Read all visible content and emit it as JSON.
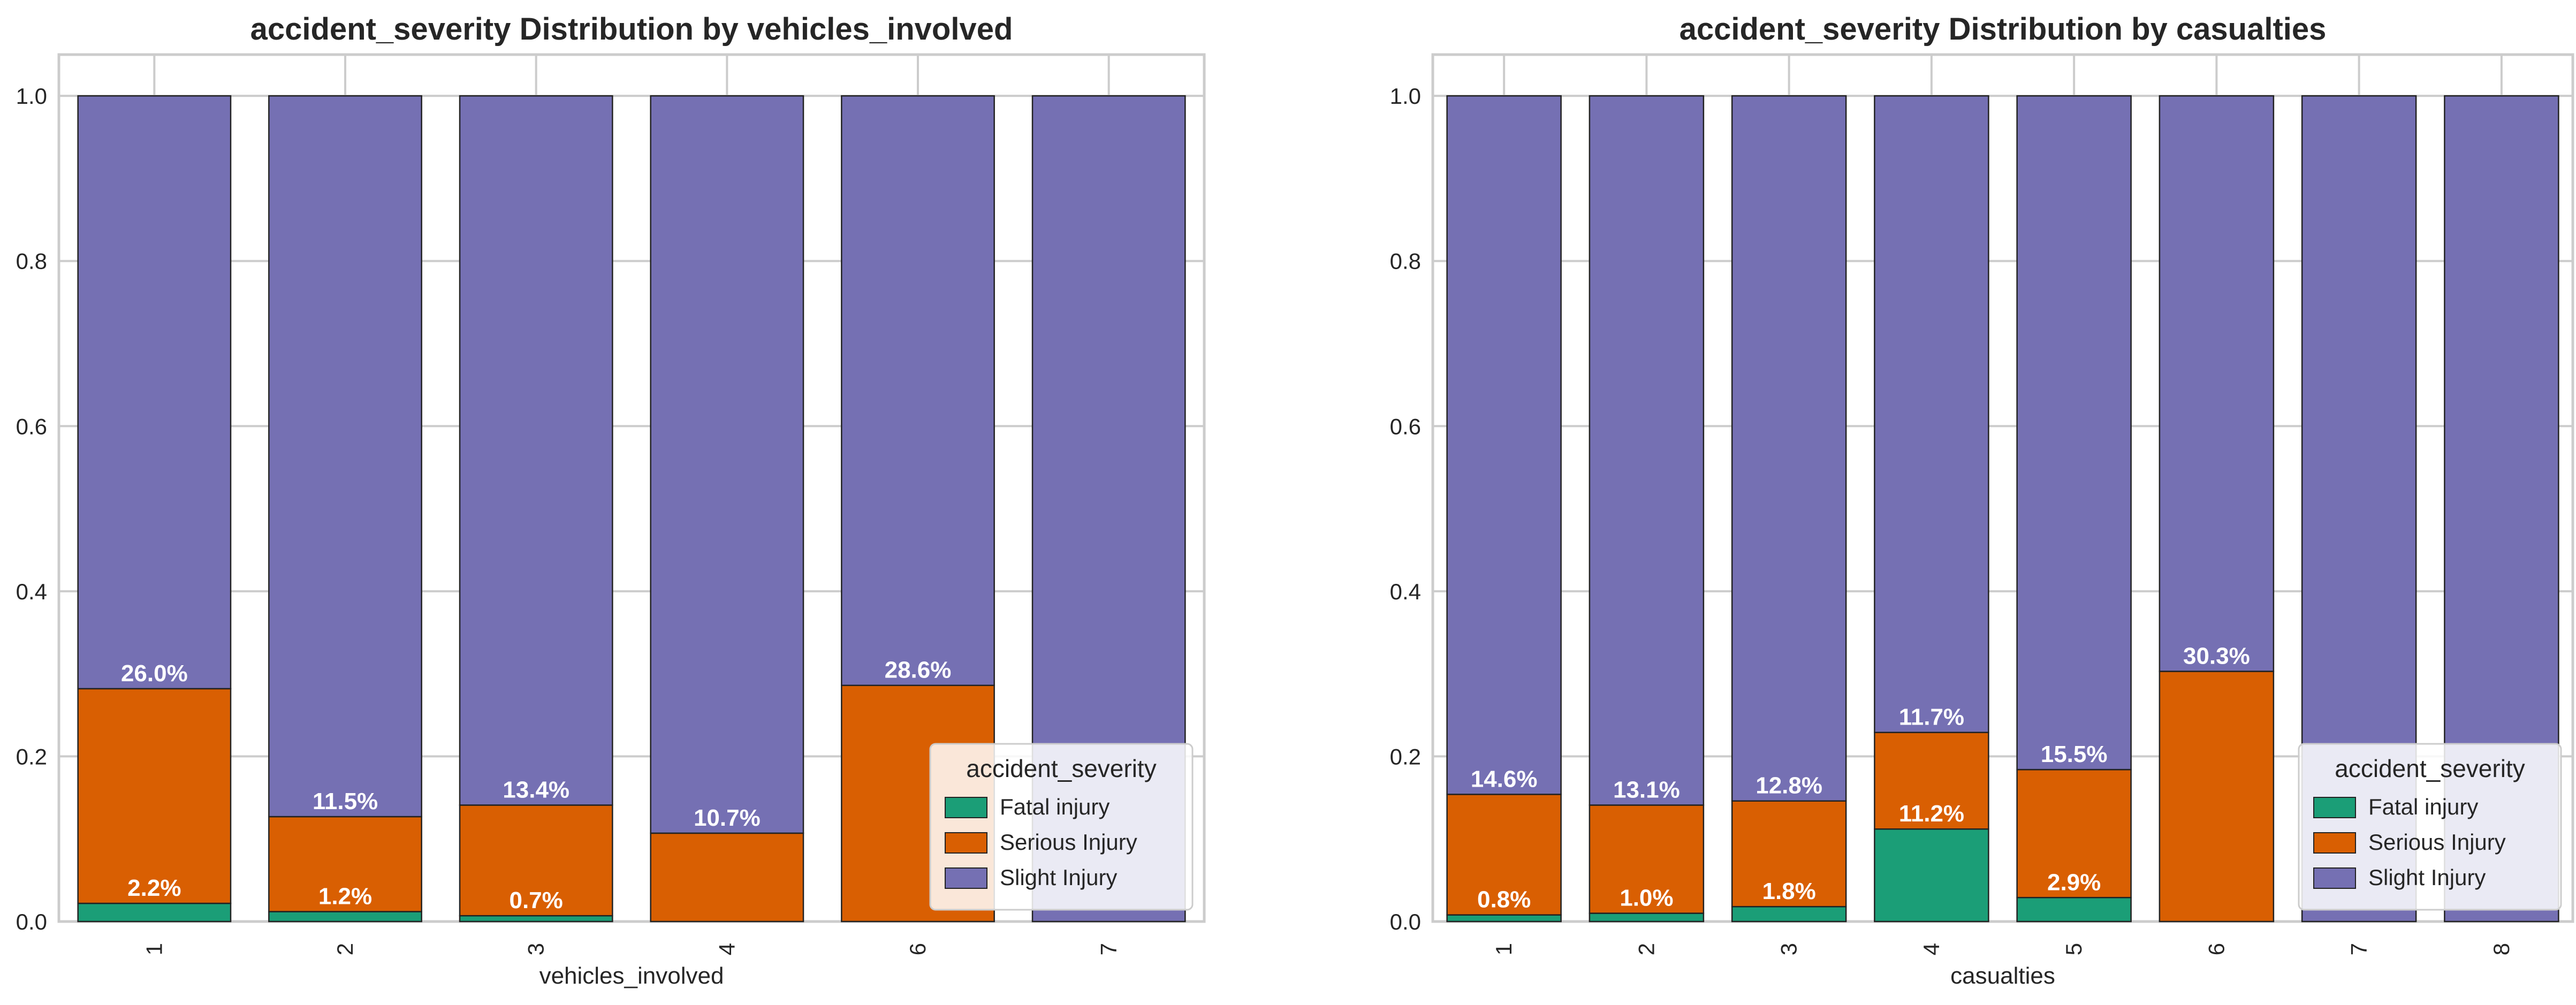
{
  "colors": {
    "fatal": "#1b9e77",
    "serious": "#d95f02",
    "slight": "#7570b3",
    "grid": "#cccccc",
    "frame": "#cccccc",
    "bar_edge": "#222222"
  },
  "legend": {
    "title": "accident_severity",
    "items": [
      "Fatal injury",
      "Serious Injury",
      "Slight Injury"
    ]
  },
  "chart_data": [
    {
      "type": "bar",
      "stacked": true,
      "title": "accident_severity Distribution by vehicles_involved",
      "xlabel": "vehicles_involved",
      "ylabel": "",
      "ylim": [
        0,
        1.05
      ],
      "yticks": [
        "0.0",
        "0.2",
        "0.4",
        "0.6",
        "0.8",
        "1.0"
      ],
      "categories": [
        "1",
        "2",
        "3",
        "4",
        "6",
        "7"
      ],
      "series": [
        {
          "name": "Fatal injury",
          "values": [
            0.022,
            0.012,
            0.007,
            0.0,
            0.0,
            0.0
          ]
        },
        {
          "name": "Serious Injury",
          "values": [
            0.26,
            0.115,
            0.134,
            0.107,
            0.286,
            0.0
          ]
        },
        {
          "name": "Slight Injury",
          "values": [
            0.718,
            0.873,
            0.859,
            0.893,
            0.714,
            1.0
          ]
        }
      ],
      "fatal_labels": [
        "2.2%",
        "1.2%",
        "0.7%",
        "",
        "",
        ""
      ],
      "serious_labels": [
        "26.0%",
        "11.5%",
        "13.4%",
        "10.7%",
        "28.6%",
        ""
      ],
      "grid": true,
      "legend_position": "lower-right"
    },
    {
      "type": "bar",
      "stacked": true,
      "title": "accident_severity Distribution by casualties",
      "xlabel": "casualties",
      "ylabel": "",
      "ylim": [
        0,
        1.05
      ],
      "yticks": [
        "0.0",
        "0.2",
        "0.4",
        "0.6",
        "0.8",
        "1.0"
      ],
      "categories": [
        "1",
        "2",
        "3",
        "4",
        "5",
        "6",
        "7",
        "8"
      ],
      "series": [
        {
          "name": "Fatal injury",
          "values": [
            0.008,
            0.01,
            0.018,
            0.112,
            0.029,
            0.0,
            0.0,
            0.0
          ]
        },
        {
          "name": "Serious Injury",
          "values": [
            0.146,
            0.131,
            0.128,
            0.117,
            0.155,
            0.303,
            0.0,
            0.0
          ]
        },
        {
          "name": "Slight Injury",
          "values": [
            0.846,
            0.859,
            0.854,
            0.771,
            0.816,
            0.697,
            1.0,
            1.0
          ]
        }
      ],
      "fatal_labels": [
        "0.8%",
        "1.0%",
        "1.8%",
        "11.2%",
        "2.9%",
        "",
        "",
        ""
      ],
      "serious_labels": [
        "14.6%",
        "13.1%",
        "12.8%",
        "11.7%",
        "15.5%",
        "30.3%",
        "",
        ""
      ],
      "grid": true,
      "legend_position": "lower-right"
    }
  ]
}
